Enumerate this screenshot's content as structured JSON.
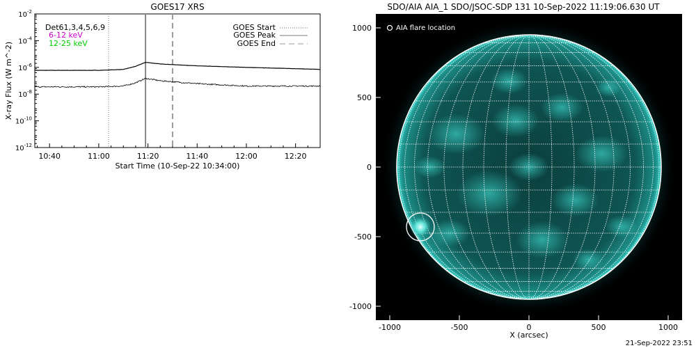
{
  "colors": {
    "goes_curve": "#000000",
    "label_6_12": "#cc00cc",
    "label_12_25": "#00cc00",
    "sun_disk": "#0a4a48",
    "sun_limb": "#2fd6cc",
    "grid": "#ffffff"
  },
  "left_panel": {
    "title": "GOES17 XRS",
    "channels_label": "Det61,3,4,5,6,9",
    "label_6_12": "6-12 keV",
    "label_12_25": "12-25 keV",
    "legend_start": "GOES Start",
    "legend_peak": "GOES Peak",
    "legend_end": "GOES End",
    "ylabel": "X-ray Flux (W m^-2)",
    "xlabel": "Start Time (10-Sep-22 10:34:00)"
  },
  "right_panel": {
    "title": "SDO/AIA AIA_1 SDO/JSOC-SDP 131 10-Sep-2022 11:19:06.630 UT",
    "flare_legend": "AIA flare location",
    "xlabel": "X (arcsec)"
  },
  "footer": {
    "timestamp": "21-Sep-2022 23:51"
  },
  "chart_data": [
    {
      "type": "line",
      "title": "GOES17 XRS",
      "xlabel": "Start Time (10-Sep-22 10:34:00)",
      "ylabel": "X-ray Flux (W m^-2)",
      "yscale": "log",
      "ylim": [
        1e-12,
        0.01
      ],
      "xlim": [
        "10:34",
        "12:30"
      ],
      "x_ticks": [
        "10:40",
        "11:00",
        "11:20",
        "11:40",
        "12:00",
        "12:20"
      ],
      "y_ticks": [
        "10^-2",
        "10^-4",
        "10^-6",
        "10^-8",
        "10^-10",
        "10^-12"
      ],
      "markers": {
        "goes_start": "11:04",
        "goes_peak": "11:19",
        "goes_end": "11:30"
      },
      "series": [
        {
          "name": "6-12 keV",
          "x": [
            "10:34",
            "11:00",
            "11:10",
            "11:15",
            "11:19",
            "11:25",
            "11:40",
            "12:00",
            "12:20",
            "12:30"
          ],
          "values": [
            6e-07,
            6e-07,
            7e-07,
            1.2e-06,
            2.4e-06,
            1.8e-06,
            1.3e-06,
            1e-06,
            8e-07,
            7e-07
          ]
        },
        {
          "name": "12-25 keV",
          "x": [
            "10:34",
            "11:00",
            "11:10",
            "11:15",
            "11:19",
            "11:25",
            "11:40",
            "12:00",
            "12:20",
            "12:30"
          ],
          "values": [
            3.5e-08,
            3.5e-08,
            4e-08,
            7e-08,
            1.5e-07,
            1e-07,
            6e-08,
            4e-08,
            4e-08,
            4e-08
          ]
        }
      ]
    },
    {
      "type": "scatter",
      "title": "SDO/AIA AIA_1 SDO/JSOC-SDP 131 10-Sep-2022 11:19:06.630 UT",
      "xlabel": "X (arcsec)",
      "ylabel": "",
      "xlim": [
        -1100,
        1100
      ],
      "ylim": [
        -1100,
        1100
      ],
      "x_ticks": [
        -1000,
        -500,
        0,
        500,
        1000
      ],
      "y_ticks": [
        1000,
        500,
        0,
        -500,
        -1000
      ],
      "series": [
        {
          "name": "AIA flare location",
          "x": [
            -780
          ],
          "values": [
            -430
          ]
        }
      ]
    }
  ]
}
